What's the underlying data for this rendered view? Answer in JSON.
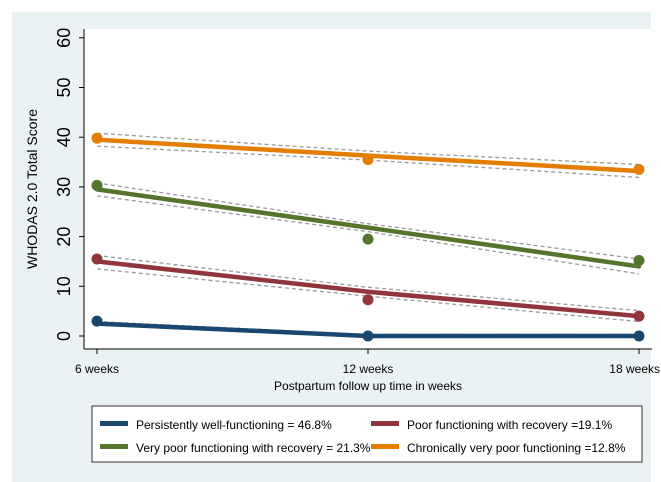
{
  "chart_data": {
    "type": "line",
    "title": "",
    "xlabel": "Postpartum follow up time in weeks",
    "ylabel": "WHODAS 2.0 Total Score",
    "categories": [
      "6 weeks",
      "12 weeks",
      "18 weeks"
    ],
    "x": [
      6,
      12,
      18
    ],
    "ylim": [
      0,
      60
    ],
    "yticks": [
      0,
      10,
      20,
      30,
      40,
      50,
      60
    ],
    "grid": false,
    "legend_position": "bottom",
    "series": [
      {
        "name": "Persistently well-functioning = 46.8%",
        "color": "#1a476f",
        "observed": [
          3.0,
          0.0,
          0.0
        ],
        "fitted": [
          2.5,
          0.0,
          0.0
        ],
        "ci_lower": [
          2.2,
          -0.2,
          -0.2
        ],
        "ci_upper": [
          2.9,
          0.3,
          0.3
        ]
      },
      {
        "name": "Poor functioning with recovery =19.1%",
        "color": "#90353b",
        "observed": [
          15.5,
          7.3,
          4.0
        ],
        "fitted": [
          15.0,
          8.9,
          4.0
        ],
        "ci_lower": [
          13.5,
          8.0,
          2.9
        ],
        "ci_upper": [
          16.2,
          9.8,
          5.1
        ]
      },
      {
        "name": "Very poor functioning with recovery = 21.3%",
        "color": "#55752f",
        "observed": [
          30.3,
          19.5,
          15.2
        ],
        "fitted": [
          29.5,
          21.8,
          14.0
        ],
        "ci_lower": [
          28.2,
          21.0,
          12.5
        ],
        "ci_upper": [
          30.8,
          22.6,
          15.5
        ]
      },
      {
        "name": "Chronically very poor functioning =12.8%",
        "color": "#e37e00",
        "observed": [
          39.8,
          35.5,
          33.5
        ],
        "fitted": [
          39.5,
          36.3,
          33.2
        ],
        "ci_lower": [
          38.2,
          35.4,
          31.9
        ],
        "ci_upper": [
          40.8,
          37.2,
          34.5
        ]
      }
    ]
  }
}
